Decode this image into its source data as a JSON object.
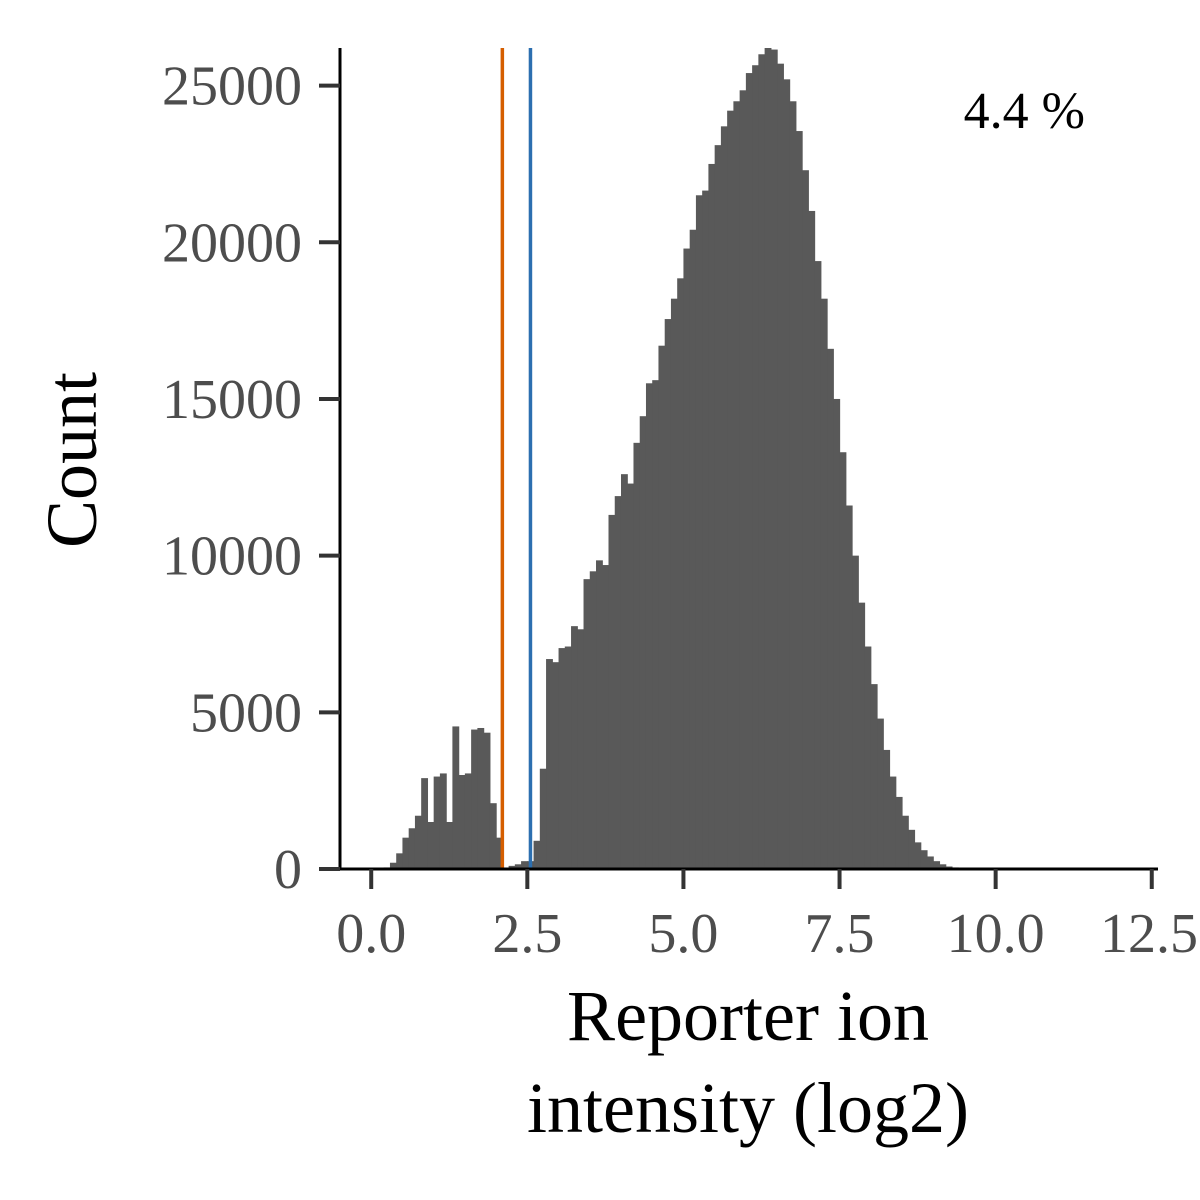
{
  "chart_data": {
    "type": "bar",
    "subtype": "histogram",
    "title": "",
    "xlabel_lines": [
      "Reporter ion",
      "intensity (log2)"
    ],
    "ylabel": "Count",
    "annotation": "4.4 %",
    "xlim": [
      -0.5,
      12.6
    ],
    "ylim": [
      0,
      26200
    ],
    "x_ticks": [
      0,
      2.5,
      5,
      7.5,
      10,
      12.5
    ],
    "x_tick_labels": [
      "0.0",
      "2.5",
      "5.0",
      "7.5",
      "10.0",
      "12.5"
    ],
    "y_ticks": [
      0,
      5000,
      10000,
      15000,
      20000,
      25000
    ],
    "y_tick_labels": [
      "0",
      "5000",
      "10000",
      "15000",
      "20000",
      "25000"
    ],
    "bin_start": 0.0,
    "bin_width": 0.1,
    "bar_color": "#595959",
    "values": [
      0,
      0,
      50,
      200,
      500,
      1000,
      1300,
      1700,
      2900,
      1500,
      2950,
      3050,
      1500,
      4550,
      3000,
      3050,
      4450,
      4500,
      4350,
      2100,
      1000,
      0,
      100,
      150,
      250,
      250,
      900,
      3200,
      6700,
      6600,
      7050,
      7100,
      7750,
      7650,
      9250,
      9500,
      9850,
      9700,
      11300,
      11900,
      12600,
      12300,
      13600,
      14450,
      15500,
      15600,
      16700,
      17550,
      18200,
      18850,
      19800,
      20400,
      21500,
      21650,
      22500,
      23100,
      23700,
      24200,
      24500,
      24850,
      25400,
      25650,
      26000,
      26200,
      26150,
      25700,
      25200,
      24500,
      23550,
      22300,
      21000,
      19400,
      18200,
      16600,
      15000,
      13300,
      11600,
      10000,
      8500,
      7100,
      5900,
      4800,
      3800,
      2950,
      2300,
      1700,
      1250,
      850,
      600,
      400,
      250,
      150,
      80,
      50,
      30,
      15,
      8,
      4,
      0
    ],
    "vlines": [
      {
        "x": 2.1,
        "color": "#d55e00"
      },
      {
        "x": 2.55,
        "color": "#2c6fb0"
      }
    ]
  }
}
